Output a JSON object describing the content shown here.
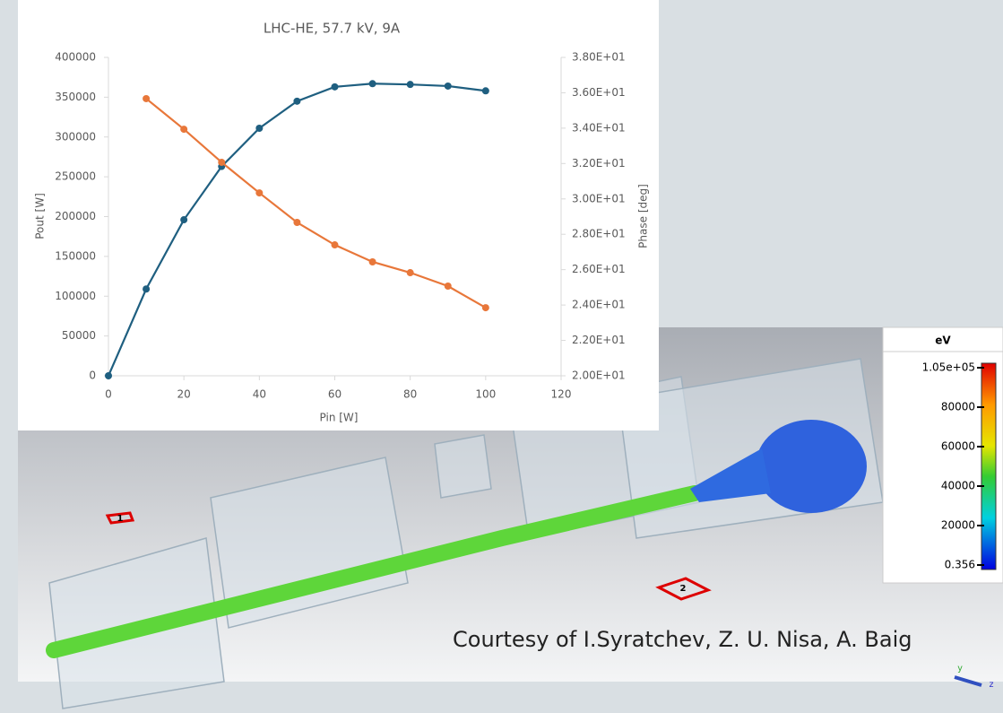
{
  "chart_data": {
    "type": "line",
    "title": "LHC-HE, 57.7 kV, 9A",
    "x_label": "Pin [W]",
    "y_label": "Pout [W]",
    "y2_label": "Phase [deg]",
    "x": [
      0,
      10,
      20,
      30,
      40,
      50,
      60,
      70,
      80,
      90,
      100
    ],
    "series": [
      {
        "color": "#1f5f80",
        "values": [
          0,
          109000,
          196000,
          263000,
          311000,
          345000,
          363000,
          367000,
          366000,
          364000,
          358000
        ]
      },
      {
        "color": "#e8773a",
        "axis": "y2",
        "values": [
          null,
          35.67,
          33.94,
          32.07,
          30.34,
          28.67,
          27.4,
          26.44,
          25.83,
          25.07,
          23.85
        ]
      }
    ],
    "xlim": [
      0,
      120
    ],
    "xticks": [
      0,
      20,
      40,
      60,
      80,
      100,
      120
    ],
    "ylim": [
      0,
      400000
    ],
    "yticks": [
      0,
      50000,
      100000,
      150000,
      200000,
      250000,
      300000,
      350000,
      400000
    ],
    "y2lim": [
      20,
      38
    ],
    "y2ticks": [
      {
        "value": 20,
        "label": "2.00E+01"
      },
      {
        "value": 22,
        "label": "2.20E+01"
      },
      {
        "value": 24,
        "label": "2.40E+01"
      },
      {
        "value": 26,
        "label": "2.60E+01"
      },
      {
        "value": 28,
        "label": "2.80E+01"
      },
      {
        "value": 30,
        "label": "3.00E+01"
      },
      {
        "value": 32,
        "label": "3.20E+01"
      },
      {
        "value": 34,
        "label": "3.40E+01"
      },
      {
        "value": 36,
        "label": "3.60E+01"
      },
      {
        "value": 38,
        "label": "3.80E+01"
      }
    ],
    "grid": false
  },
  "colorbar": {
    "title": "eV",
    "labels": [
      "1.05e+05",
      "80000",
      "60000",
      "40000",
      "20000",
      "0.356"
    ]
  },
  "ports": [
    "1",
    "2"
  ],
  "axes_triad": [
    "y",
    "z"
  ],
  "caption": "Courtesy of I.Syratchev, Z. U. Nisa, A. Baig"
}
